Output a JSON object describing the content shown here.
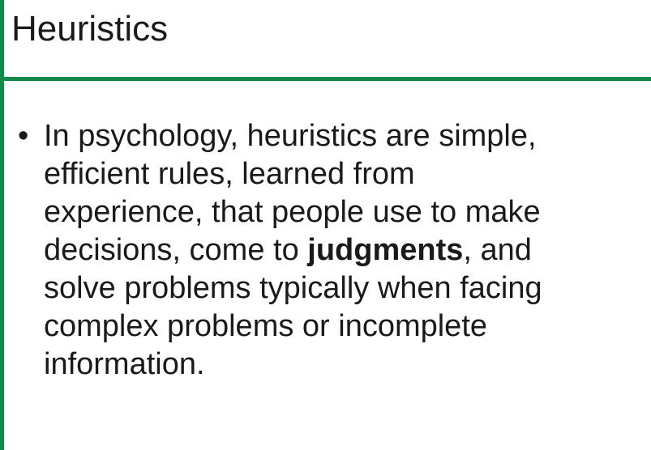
{
  "slide": {
    "title": "Heuristics",
    "accent_color": "#0f8a4a",
    "bullets": [
      {
        "lines": [
          "In psychology, heuristics are simple,",
          "efficient rules, learned from",
          "experience, that people use to make"
        ],
        "line4_before": "decisions, come to ",
        "line4_bold": "judgments",
        "line4_after": ", and",
        "lines_after": [
          "solve problems typically when facing",
          "complex problems or incomplete",
          "information."
        ]
      }
    ]
  }
}
